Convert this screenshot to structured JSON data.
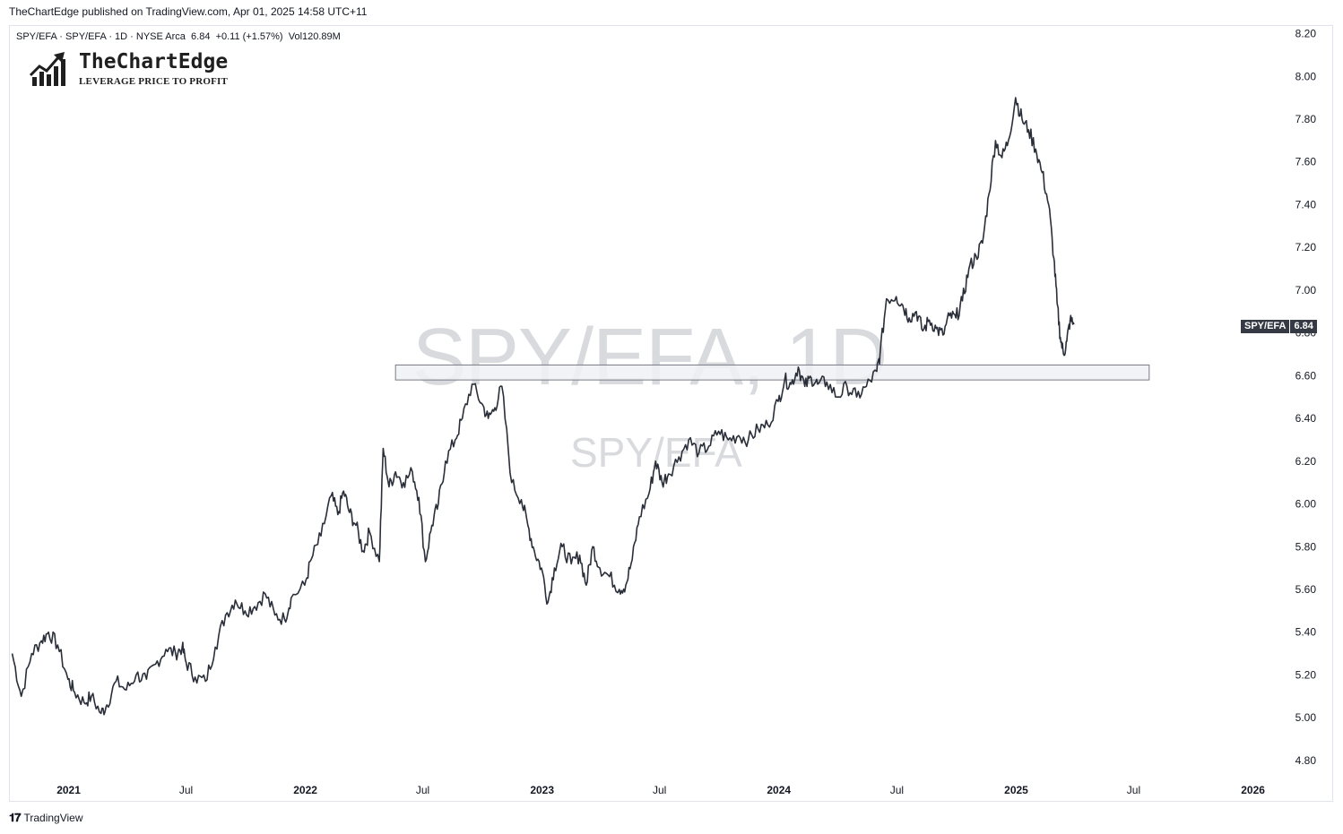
{
  "header": {
    "text": "TheChartEdge published on TradingView.com, Apr 01, 2025 14:58 UTC+11"
  },
  "legend": {
    "symbol": "SPY/EFA · SPY/EFA · 1D · NYSE Arca",
    "last": "6.84",
    "change": "+0.11 (+1.57%)",
    "vol": "Vol120.89",
    "vol_unit": "M"
  },
  "logo": {
    "brand": "TheChartEdge",
    "tagline": "LEVERAGE PRICE TO PROFIT",
    "icon": "bar-chart-arrow-icon"
  },
  "watermark": {
    "main": "SPY/EFA, 1D",
    "sub": "SPY/EFA"
  },
  "price_badge": {
    "name": "SPY/EFA",
    "value": "6.84"
  },
  "footer": {
    "brand": "TradingView",
    "icon": "tradingview-logo-icon"
  },
  "colors": {
    "line": "#2a2e39",
    "zone_fill": "#f0f1f5",
    "zone_border": "#787b86",
    "badge": "#363a45"
  },
  "chart_data": {
    "type": "line",
    "title": "",
    "xlabel": "",
    "ylabel": "",
    "ylim": [
      4.72,
      8.24
    ],
    "xlim": [
      "2020-10-01",
      "2026-02-01"
    ],
    "grid": false,
    "y_ticks": [
      "8.20",
      "8.00",
      "7.80",
      "7.60",
      "7.40",
      "7.20",
      "7.00",
      "6.80",
      "6.60",
      "6.40",
      "6.20",
      "6.00",
      "5.80",
      "5.60",
      "5.40",
      "5.20",
      "5.00",
      "4.80"
    ],
    "x_ticks": [
      {
        "label": "2021",
        "date": "2021-01-01"
      },
      {
        "label": "Jul",
        "date": "2021-07-01"
      },
      {
        "label": "2022",
        "date": "2022-01-01"
      },
      {
        "label": "Jul",
        "date": "2022-07-01"
      },
      {
        "label": "2023",
        "date": "2023-01-01"
      },
      {
        "label": "Jul",
        "date": "2023-07-01"
      },
      {
        "label": "2024",
        "date": "2024-01-01"
      },
      {
        "label": "Jul",
        "date": "2024-07-01"
      },
      {
        "label": "2025",
        "date": "2025-01-01"
      },
      {
        "label": "Jul",
        "date": "2025-07-01"
      },
      {
        "label": "2026",
        "date": "2026-01-01"
      }
    ],
    "series": [
      {
        "points": [
          [
            "2020-10-06",
            5.3
          ],
          [
            "2020-10-20",
            5.1
          ],
          [
            "2020-11-05",
            5.3
          ],
          [
            "2020-11-20",
            5.36
          ],
          [
            "2020-12-01",
            5.4
          ],
          [
            "2020-12-15",
            5.34
          ],
          [
            "2020-12-31",
            5.18
          ],
          [
            "2021-01-10",
            5.12
          ],
          [
            "2021-01-25",
            5.07
          ],
          [
            "2021-02-05",
            5.1
          ],
          [
            "2021-02-20",
            5.02
          ],
          [
            "2021-03-01",
            5.06
          ],
          [
            "2021-03-15",
            5.17
          ],
          [
            "2021-03-31",
            5.13
          ],
          [
            "2021-04-15",
            5.2
          ],
          [
            "2021-05-01",
            5.18
          ],
          [
            "2021-05-15",
            5.25
          ],
          [
            "2021-05-31",
            5.32
          ],
          [
            "2021-06-15",
            5.3
          ],
          [
            "2021-06-25",
            5.33
          ],
          [
            "2021-07-01",
            5.26
          ],
          [
            "2021-07-15",
            5.19
          ],
          [
            "2021-07-31",
            5.17
          ],
          [
            "2021-08-15",
            5.33
          ],
          [
            "2021-08-31",
            5.48
          ],
          [
            "2021-09-15",
            5.55
          ],
          [
            "2021-09-30",
            5.5
          ],
          [
            "2021-10-15",
            5.52
          ],
          [
            "2021-10-31",
            5.58
          ],
          [
            "2021-11-15",
            5.48
          ],
          [
            "2021-11-30",
            5.46
          ],
          [
            "2021-12-10",
            5.56
          ],
          [
            "2021-12-31",
            5.62
          ],
          [
            "2022-01-10",
            5.74
          ],
          [
            "2022-01-25",
            5.85
          ],
          [
            "2022-02-10",
            6.04
          ],
          [
            "2022-02-20",
            5.95
          ],
          [
            "2022-03-01",
            6.06
          ],
          [
            "2022-03-10",
            5.96
          ],
          [
            "2022-03-20",
            5.9
          ],
          [
            "2022-03-31",
            5.78
          ],
          [
            "2022-04-10",
            5.87
          ],
          [
            "2022-04-25",
            5.73
          ],
          [
            "2022-05-01",
            6.26
          ],
          [
            "2022-05-10",
            6.08
          ],
          [
            "2022-05-20",
            6.15
          ],
          [
            "2022-06-01",
            6.1
          ],
          [
            "2022-06-15",
            6.15
          ],
          [
            "2022-06-25",
            6.03
          ],
          [
            "2022-07-05",
            5.73
          ],
          [
            "2022-07-15",
            5.9
          ],
          [
            "2022-07-25",
            6.0
          ],
          [
            "2022-08-05",
            6.2
          ],
          [
            "2022-08-20",
            6.3
          ],
          [
            "2022-08-31",
            6.4
          ],
          [
            "2022-09-15",
            6.56
          ],
          [
            "2022-09-30",
            6.47
          ],
          [
            "2022-10-10",
            6.4
          ],
          [
            "2022-10-20",
            6.45
          ],
          [
            "2022-10-31",
            6.55
          ],
          [
            "2022-11-15",
            6.1
          ],
          [
            "2022-11-30",
            6.02
          ],
          [
            "2022-12-10",
            5.9
          ],
          [
            "2022-12-20",
            5.78
          ],
          [
            "2022-12-31",
            5.7
          ],
          [
            "2023-01-10",
            5.54
          ],
          [
            "2023-01-20",
            5.7
          ],
          [
            "2023-02-01",
            5.8
          ],
          [
            "2023-02-15",
            5.72
          ],
          [
            "2023-02-28",
            5.76
          ],
          [
            "2023-03-10",
            5.62
          ],
          [
            "2023-03-20",
            5.8
          ],
          [
            "2023-03-31",
            5.7
          ],
          [
            "2023-04-15",
            5.66
          ],
          [
            "2023-04-30",
            5.6
          ],
          [
            "2023-05-10",
            5.62
          ],
          [
            "2023-05-20",
            5.74
          ],
          [
            "2023-05-31",
            5.94
          ],
          [
            "2023-06-15",
            6.05
          ],
          [
            "2023-06-25",
            6.2
          ],
          [
            "2023-07-05",
            6.1
          ],
          [
            "2023-07-15",
            6.14
          ],
          [
            "2023-07-31",
            6.22
          ],
          [
            "2023-08-15",
            6.3
          ],
          [
            "2023-08-31",
            6.24
          ],
          [
            "2023-09-15",
            6.27
          ],
          [
            "2023-09-30",
            6.34
          ],
          [
            "2023-10-15",
            6.3
          ],
          [
            "2023-10-31",
            6.32
          ],
          [
            "2023-11-15",
            6.3
          ],
          [
            "2023-11-30",
            6.35
          ],
          [
            "2023-12-15",
            6.37
          ],
          [
            "2023-12-31",
            6.48
          ],
          [
            "2024-01-10",
            6.58
          ],
          [
            "2024-01-20",
            6.56
          ],
          [
            "2024-01-31",
            6.64
          ],
          [
            "2024-02-10",
            6.55
          ],
          [
            "2024-02-20",
            6.59
          ],
          [
            "2024-03-01",
            6.56
          ],
          [
            "2024-03-15",
            6.57
          ],
          [
            "2024-03-31",
            6.5
          ],
          [
            "2024-04-15",
            6.55
          ],
          [
            "2024-04-30",
            6.5
          ],
          [
            "2024-05-15",
            6.55
          ],
          [
            "2024-05-31",
            6.62
          ],
          [
            "2024-06-05",
            6.7
          ],
          [
            "2024-06-15",
            6.96
          ],
          [
            "2024-06-30",
            6.97
          ],
          [
            "2024-07-10",
            6.93
          ],
          [
            "2024-07-20",
            6.87
          ],
          [
            "2024-07-31",
            6.9
          ],
          [
            "2024-08-10",
            6.81
          ],
          [
            "2024-08-20",
            6.86
          ],
          [
            "2024-08-31",
            6.82
          ],
          [
            "2024-09-10",
            6.79
          ],
          [
            "2024-09-20",
            6.88
          ],
          [
            "2024-09-30",
            6.87
          ],
          [
            "2024-10-10",
            6.95
          ],
          [
            "2024-10-20",
            7.1
          ],
          [
            "2024-10-31",
            7.16
          ],
          [
            "2024-11-10",
            7.22
          ],
          [
            "2024-11-20",
            7.45
          ],
          [
            "2024-11-30",
            7.7
          ],
          [
            "2024-12-10",
            7.62
          ],
          [
            "2024-12-20",
            7.7
          ],
          [
            "2024-12-31",
            7.9
          ],
          [
            "2025-01-10",
            7.8
          ],
          [
            "2025-01-20",
            7.75
          ],
          [
            "2025-01-31",
            7.66
          ],
          [
            "2025-02-10",
            7.55
          ],
          [
            "2025-02-20",
            7.4
          ],
          [
            "2025-02-28",
            7.15
          ],
          [
            "2025-03-05",
            6.94
          ],
          [
            "2025-03-10",
            6.78
          ],
          [
            "2025-03-15",
            6.7
          ],
          [
            "2025-03-20",
            6.76
          ],
          [
            "2025-03-25",
            6.86
          ],
          [
            "2025-03-31",
            6.84
          ]
        ]
      }
    ],
    "zones": [
      {
        "x0": "2022-05-20",
        "x1": "2025-07-25",
        "y0": 6.58,
        "y1": 6.65
      }
    ]
  }
}
